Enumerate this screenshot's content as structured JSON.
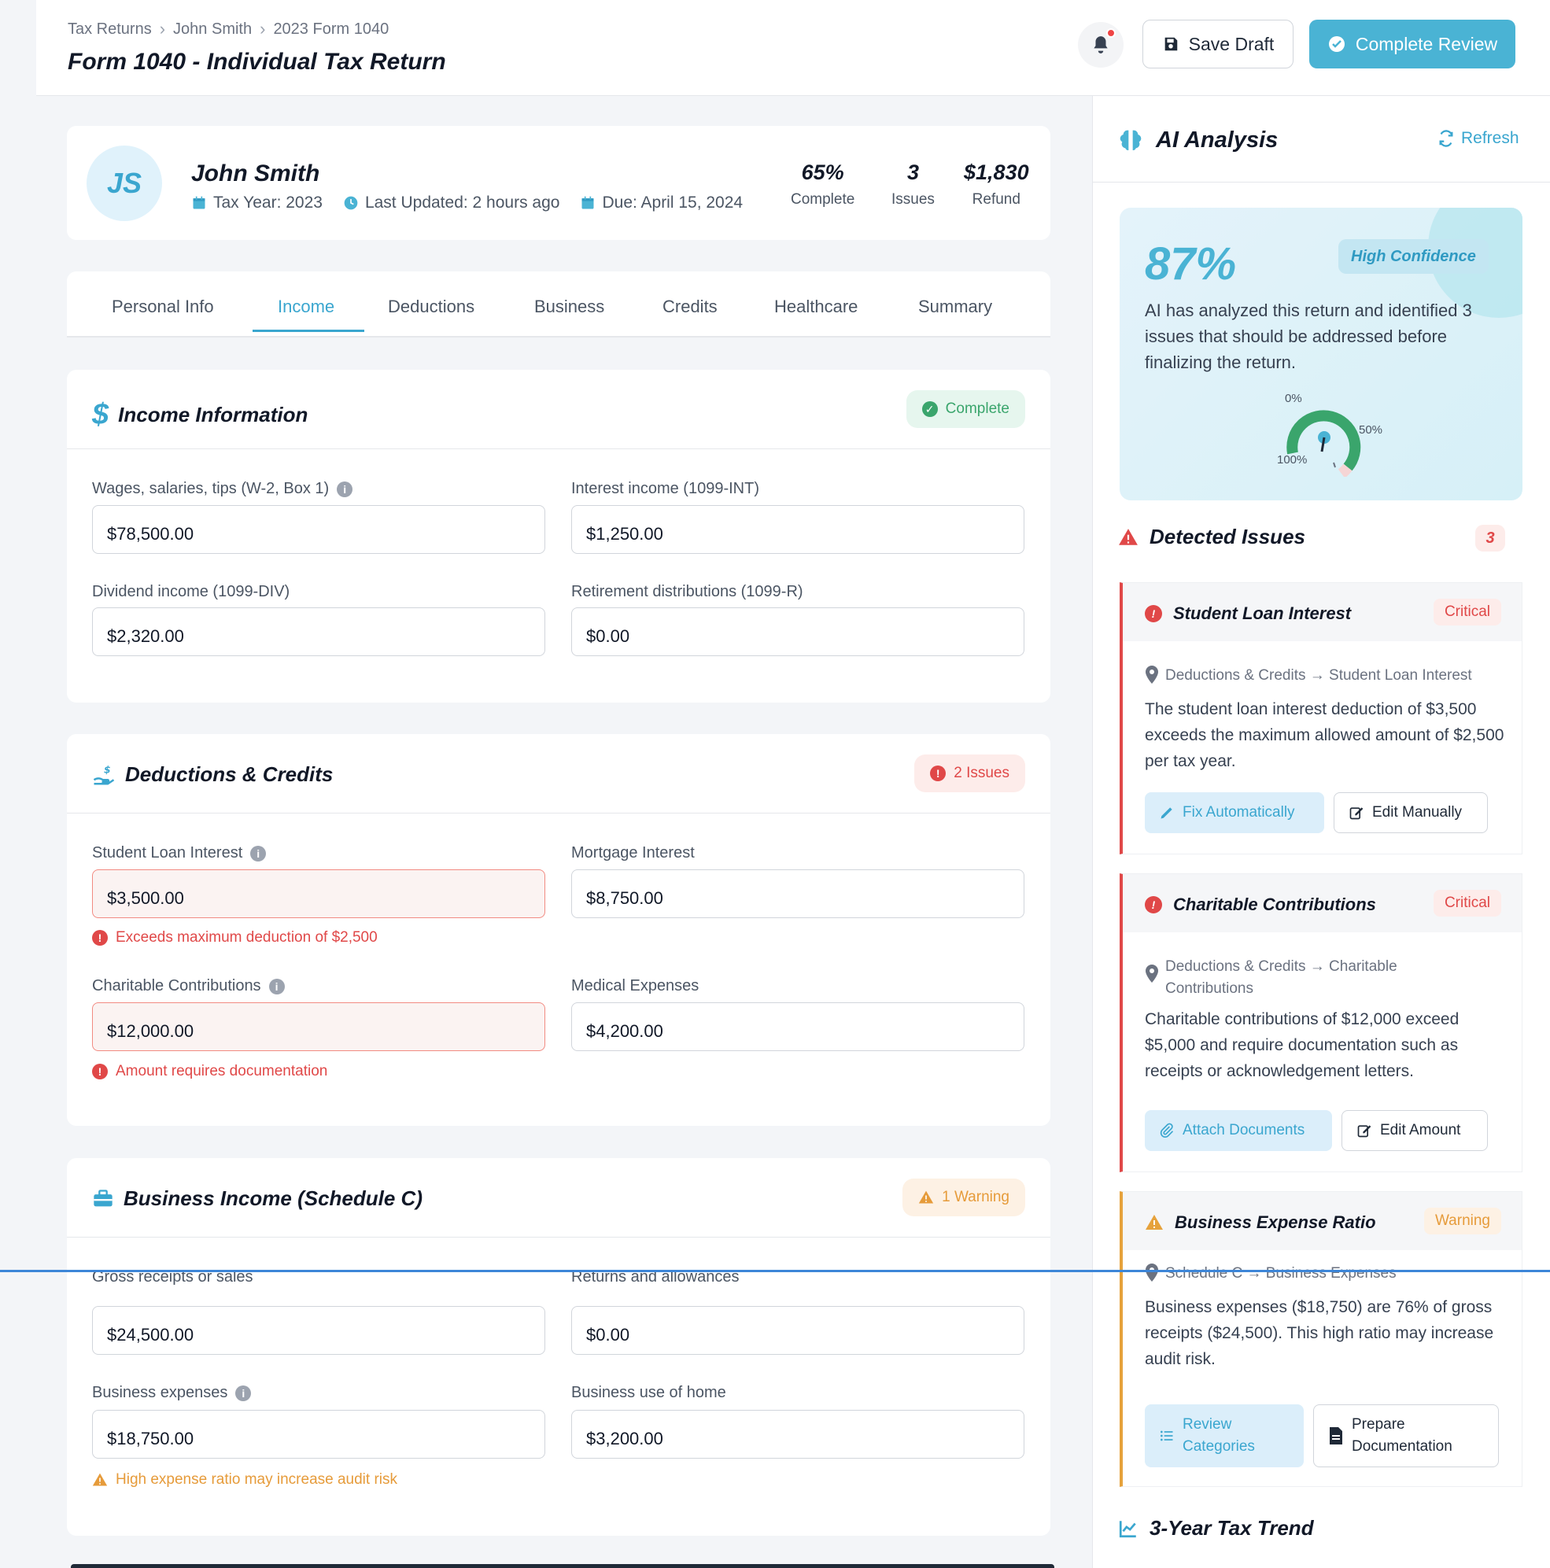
{
  "breadcrumb": [
    "Tax Returns",
    "John Smith",
    "2023 Form 1040"
  ],
  "page_title": "Form 1040 - Individual Tax Return",
  "actions": {
    "save_draft": "Save Draft",
    "complete_review": "Complete Review"
  },
  "profile": {
    "initials": "JS",
    "name": "John Smith",
    "tax_year": "Tax Year: 2023",
    "last_updated": "Last Updated: 2 hours ago",
    "due": "Due: April 15, 2024",
    "stats": [
      {
        "value": "65%",
        "label": "Complete"
      },
      {
        "value": "3",
        "label": "Issues"
      },
      {
        "value": "$1,830",
        "label": "Refund"
      }
    ]
  },
  "tabs": [
    "Personal Info",
    "Income",
    "Deductions",
    "Business",
    "Credits",
    "Healthcare",
    "Summary"
  ],
  "active_tab": "Income",
  "income": {
    "title": "Income Information",
    "status": "Complete",
    "fields": [
      {
        "label": "Wages, salaries, tips (W-2, Box 1)",
        "value": "$78,500.00"
      },
      {
        "label": "Interest income (1099-INT)",
        "value": "$1,250.00"
      },
      {
        "label": "Dividend income (1099-DIV)",
        "value": "$2,320.00"
      },
      {
        "label": "Retirement distributions (1099-R)",
        "value": "$0.00"
      }
    ]
  },
  "deductions": {
    "title": "Deductions & Credits",
    "status": "2 Issues",
    "fields": [
      {
        "label": "Student Loan Interest",
        "value": "$3,500.00",
        "error": "Exceeds maximum deduction of $2,500"
      },
      {
        "label": "Mortgage Interest",
        "value": "$8,750.00"
      },
      {
        "label": "Charitable Contributions",
        "value": "$12,000.00",
        "error": "Amount requires documentation"
      },
      {
        "label": "Medical Expenses",
        "value": "$4,200.00"
      }
    ]
  },
  "business": {
    "title": "Business Income (Schedule C)",
    "status": "1 Warning",
    "fields": [
      {
        "label": "Gross receipts or sales",
        "value": "$24,500.00"
      },
      {
        "label": "Returns and allowances",
        "value": "$0.00"
      },
      {
        "label": "Business expenses",
        "value": "$18,750.00",
        "warning": "High expense ratio may increase audit risk"
      },
      {
        "label": "Business use of home",
        "value": "$3,200.00"
      }
    ]
  },
  "ai": {
    "title": "AI Analysis",
    "refresh": "Refresh",
    "confidence": "87%",
    "confidence_label": "High Confidence",
    "summary": "AI has analyzed this return and identified 3 issues that should be addressed before finalizing the return.",
    "gauge_labels": [
      "0%",
      "50%",
      "100%"
    ]
  },
  "issues": {
    "title": "Detected Issues",
    "count": "3",
    "items": [
      {
        "title": "Student Loan Interest",
        "severity": "Critical",
        "location": "Deductions & Credits → Student Loan Interest",
        "description": "The student loan interest deduction of $3,500 exceeds the maximum allowed amount of $2,500 per tax year.",
        "primary_action": "Fix Automatically",
        "secondary_action": "Edit Manually"
      },
      {
        "title": "Charitable Contributions",
        "severity": "Critical",
        "location": "Deductions & Credits → Charitable Contributions",
        "description": "Charitable contributions of $12,000 exceed $5,000 and require documentation such as receipts or acknowledgement letters.",
        "primary_action": "Attach Documents",
        "secondary_action": "Edit Amount"
      },
      {
        "title": "Business Expense Ratio",
        "severity": "Warning",
        "location": "Schedule C → Business Expenses",
        "description": "Business expenses ($18,750) are 76% of gross receipts ($24,500). This high ratio may increase audit risk.",
        "primary_action": "Review Categories",
        "secondary_action": "Prepare Documentation"
      }
    ]
  },
  "trend": {
    "title": "3-Year Tax Trend"
  },
  "colors": {
    "accent": "#4ab3d4",
    "critical": "#e04848",
    "warning": "#e69b3a",
    "success": "#3aa56c"
  }
}
